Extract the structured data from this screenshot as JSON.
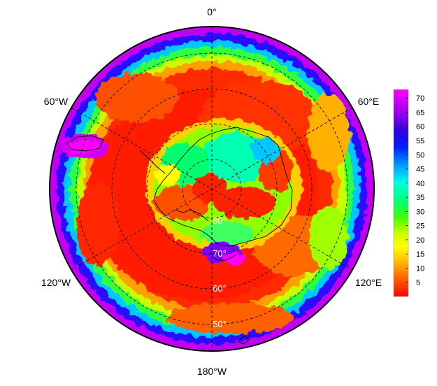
{
  "map": {
    "projection": "south-polar-stereographic",
    "longitude_labels": [
      "0°",
      "60°W",
      "60°E",
      "120°W",
      "120°E",
      "180°W"
    ],
    "latitude_labels": [
      "80°",
      "70°",
      "60°",
      "50°"
    ],
    "colorbar": {
      "ticks": [
        "5",
        "10",
        "15",
        "20",
        "25",
        "30",
        "35",
        "40",
        "45",
        "50",
        "55",
        "60",
        "65",
        "70"
      ],
      "min": 0,
      "max": 73,
      "colors": [
        "#ff0000",
        "#ff5a00",
        "#ffb400",
        "#ffff00",
        "#bfff00",
        "#40ff00",
        "#00ff40",
        "#00ffbf",
        "#00e5ff",
        "#0080ff",
        "#0010ff",
        "#5000e0",
        "#b000f0",
        "#ff00ff"
      ]
    }
  }
}
